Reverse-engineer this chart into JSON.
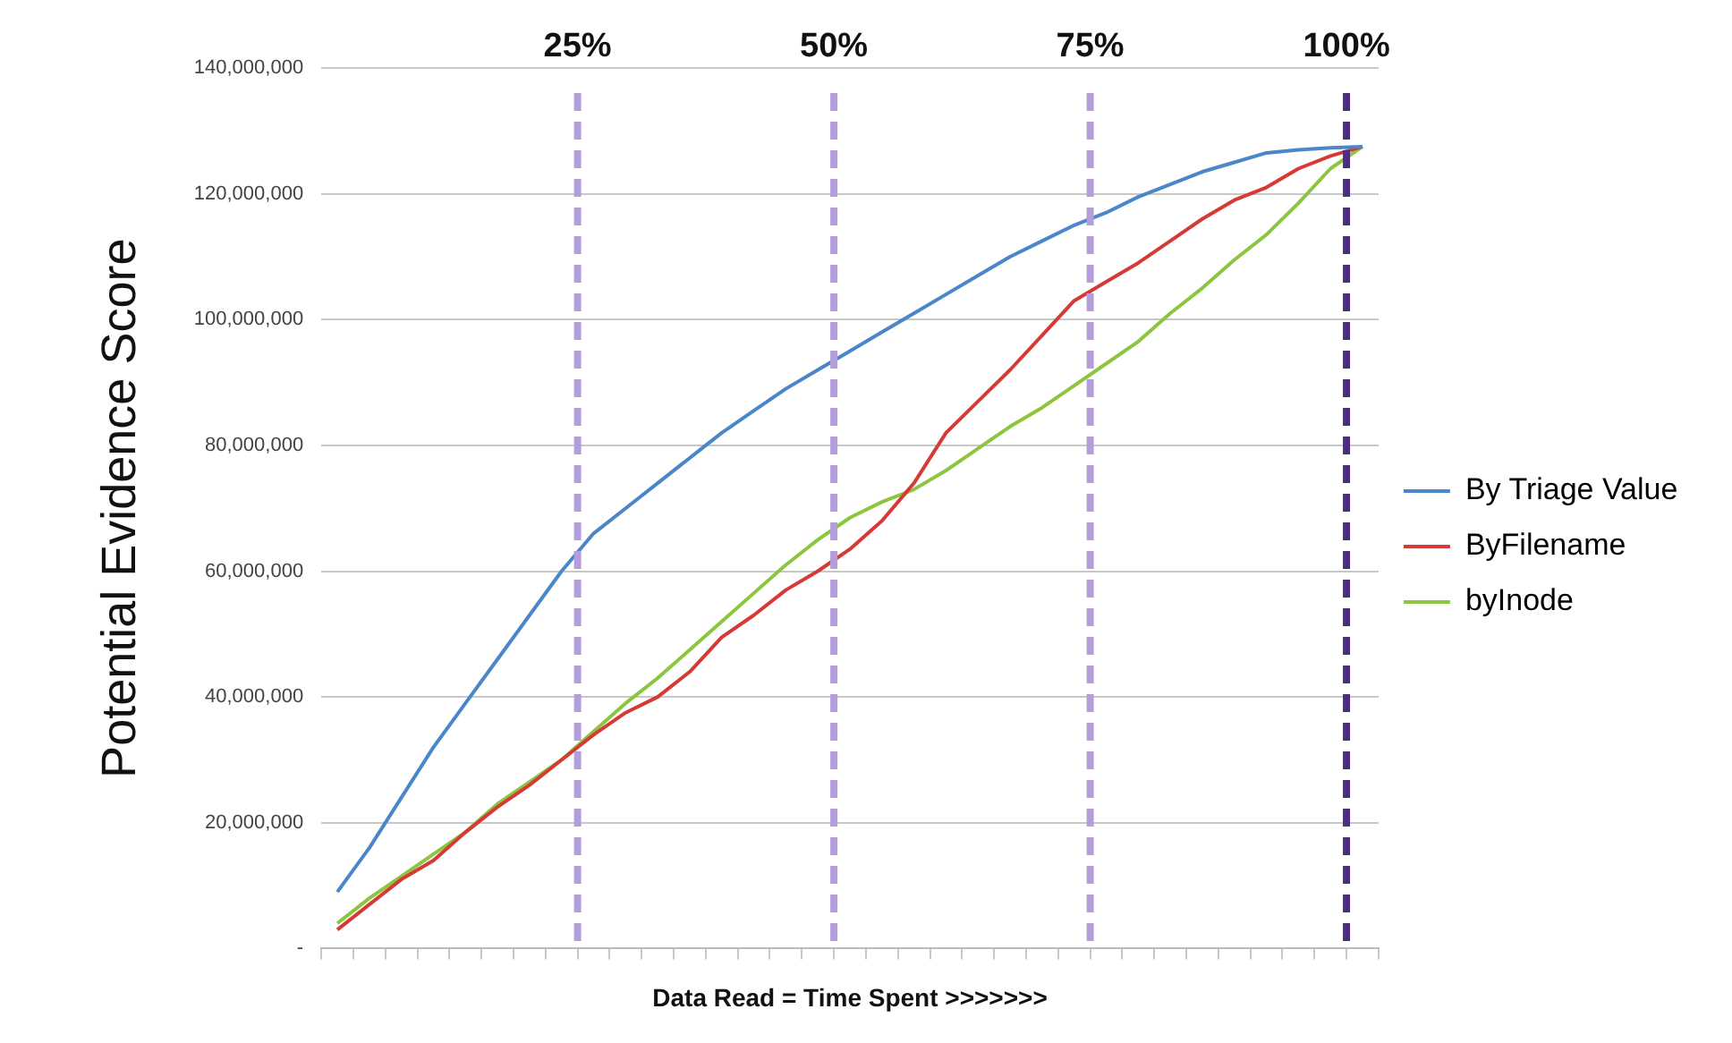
{
  "chart_data": {
    "type": "line",
    "xlabel": "Data Read = Time Spent >>>>>>>",
    "ylabel": "Potential Evidence Score",
    "categories": [
      null,
      null,
      null,
      null,
      null,
      null,
      null,
      null,
      null,
      null,
      null,
      null,
      null,
      null,
      null,
      null,
      null,
      null,
      null,
      null,
      null,
      null,
      null,
      null,
      null,
      null,
      null,
      null,
      null,
      null,
      null,
      null,
      null
    ],
    "ylim": [
      0,
      140000000
    ],
    "yticks": [
      {
        "value": 0,
        "label": "-"
      },
      {
        "value": 20000000,
        "label": "20,000,000"
      },
      {
        "value": 40000000,
        "label": "40,000,000"
      },
      {
        "value": 60000000,
        "label": "60,000,000"
      },
      {
        "value": 80000000,
        "label": "80,000,000"
      },
      {
        "value": 100000000,
        "label": "100,000,000"
      },
      {
        "value": 120000000,
        "label": "120,000,000"
      },
      {
        "value": 140000000,
        "label": "140,000,000"
      }
    ],
    "grid": "y",
    "legend": "right",
    "line_style": "solid",
    "series": [
      {
        "name": "By Triage Value",
        "color": "#4a86c8",
        "values": [
          9000000,
          16000000,
          24000000,
          32000000,
          39000000,
          46000000,
          53000000,
          60000000,
          66000000,
          70000000,
          74000000,
          78000000,
          82000000,
          85500000,
          89000000,
          92000000,
          95000000,
          98000000,
          101000000,
          104000000,
          107000000,
          110000000,
          112500000,
          115000000,
          117000000,
          119500000,
          121500000,
          123500000,
          125000000,
          126500000,
          127000000,
          127300000,
          127500000
        ]
      },
      {
        "name": "ByFilename",
        "color": "#d63a35",
        "values": [
          3000000,
          7000000,
          11000000,
          14000000,
          18500000,
          22500000,
          26000000,
          30000000,
          34000000,
          37500000,
          40000000,
          44000000,
          49500000,
          53000000,
          57000000,
          60000000,
          63500000,
          68000000,
          74000000,
          82000000,
          87000000,
          92000000,
          97500000,
          103000000,
          106000000,
          109000000,
          112500000,
          116000000,
          119000000,
          121000000,
          124000000,
          126000000,
          127500000
        ]
      },
      {
        "name": "byInode",
        "color": "#8cc63f",
        "values": [
          4000000,
          8000000,
          11500000,
          15000000,
          18500000,
          23000000,
          26500000,
          30000000,
          34500000,
          39000000,
          43000000,
          47500000,
          52000000,
          56500000,
          61000000,
          65000000,
          68500000,
          71000000,
          73000000,
          76000000,
          79500000,
          83000000,
          86000000,
          89500000,
          93000000,
          96500000,
          101000000,
          105000000,
          109500000,
          113500000,
          118500000,
          124000000,
          127500000
        ]
      }
    ],
    "annotations": [
      "25%",
      "50%",
      "75%",
      "100%"
    ]
  }
}
